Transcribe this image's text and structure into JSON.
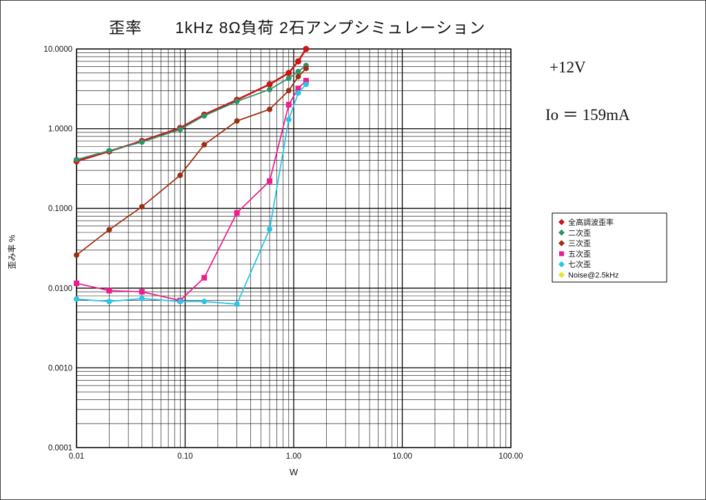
{
  "title": "歪率　　1kHz 8Ω負荷 2石アンプシミュレーション",
  "annotations": {
    "voltage": "+12V",
    "bias_current": "Io ＝ 159mA"
  },
  "chart_data": {
    "type": "line",
    "title": "歪率　　1kHz 8Ω負荷 2石アンプシミュレーション",
    "xlabel": "W",
    "ylabel": "歪み率 %",
    "xscale": "log",
    "yscale": "log",
    "xlim": [
      0.01,
      100
    ],
    "ylim": [
      0.0001,
      10
    ],
    "grid": "black major and minor log gridlines, both axes",
    "legend_position": "right-outside",
    "xticks": {
      "values": [
        0.01,
        0.1,
        1,
        10,
        100
      ],
      "labels": [
        "0.01",
        "0.10",
        "1.00",
        "10.00",
        "100.00"
      ]
    },
    "yticks": {
      "values": [
        10,
        1,
        0.1,
        0.01,
        0.001,
        0.0001
      ],
      "labels": [
        "10.0000",
        "1.0000",
        "0.1000",
        "0.0100",
        "0.0010",
        "0.0001"
      ]
    },
    "series": [
      {
        "id": "thd",
        "name": "全高調波歪率",
        "color": "#cc1414",
        "marker": "circle",
        "width": 2.6,
        "msize": 4.5,
        "points": [
          [
            0.01,
            0.39
          ],
          [
            0.02,
            0.52
          ],
          [
            0.04,
            0.7
          ],
          [
            0.09,
            1.02
          ],
          [
            0.15,
            1.5
          ],
          [
            0.3,
            2.3
          ],
          [
            0.6,
            3.6
          ],
          [
            0.9,
            5.0
          ],
          [
            1.1,
            7.0
          ],
          [
            1.3,
            10.0
          ]
        ]
      },
      {
        "id": "h2",
        "name": "二次歪",
        "color": "#2e9368",
        "marker": "circle",
        "width": 1.8,
        "msize": 4,
        "points": [
          [
            0.01,
            0.41
          ],
          [
            0.02,
            0.53
          ],
          [
            0.04,
            0.68
          ],
          [
            0.09,
            0.98
          ],
          [
            0.15,
            1.45
          ],
          [
            0.3,
            2.2
          ],
          [
            0.6,
            3.1
          ],
          [
            0.9,
            4.3
          ],
          [
            1.1,
            5.2
          ],
          [
            1.3,
            6.2
          ]
        ]
      },
      {
        "id": "h3",
        "name": "三次歪",
        "color": "#9e2e10",
        "marker": "circle",
        "width": 1.8,
        "msize": 4,
        "points": [
          [
            0.01,
            0.026
          ],
          [
            0.02,
            0.054
          ],
          [
            0.04,
            0.105
          ],
          [
            0.09,
            0.26
          ],
          [
            0.15,
            0.63
          ],
          [
            0.3,
            1.25
          ],
          [
            0.6,
            1.75
          ],
          [
            0.9,
            3.0
          ],
          [
            1.1,
            4.5
          ],
          [
            1.3,
            5.7
          ]
        ]
      },
      {
        "id": "h5",
        "name": "五次歪",
        "color": "#ee1c8e",
        "marker": "square",
        "width": 1.8,
        "msize": 4,
        "points": [
          [
            0.01,
            0.0115
          ],
          [
            0.02,
            0.0093
          ],
          [
            0.04,
            0.009
          ],
          [
            0.09,
            0.007
          ],
          [
            0.15,
            0.0135
          ],
          [
            0.3,
            0.088
          ],
          [
            0.6,
            0.22
          ],
          [
            0.9,
            2.0
          ],
          [
            1.1,
            3.2
          ],
          [
            1.3,
            4.0
          ]
        ]
      },
      {
        "id": "h7",
        "name": "七次歪",
        "color": "#29c5e6",
        "marker": "circle",
        "width": 1.8,
        "msize": 4,
        "points": [
          [
            0.01,
            0.0073
          ],
          [
            0.02,
            0.0068
          ],
          [
            0.04,
            0.0074
          ],
          [
            0.09,
            0.0068
          ],
          [
            0.15,
            0.0068
          ],
          [
            0.3,
            0.0063
          ],
          [
            0.6,
            0.055
          ],
          [
            0.9,
            1.3
          ],
          [
            1.1,
            2.8
          ],
          [
            1.3,
            3.6
          ]
        ]
      },
      {
        "id": "noise",
        "name": "Noise@2.5kHz",
        "color": "#e3e326",
        "marker": "circle",
        "width": 1.8,
        "msize": 4,
        "points": []
      }
    ]
  }
}
